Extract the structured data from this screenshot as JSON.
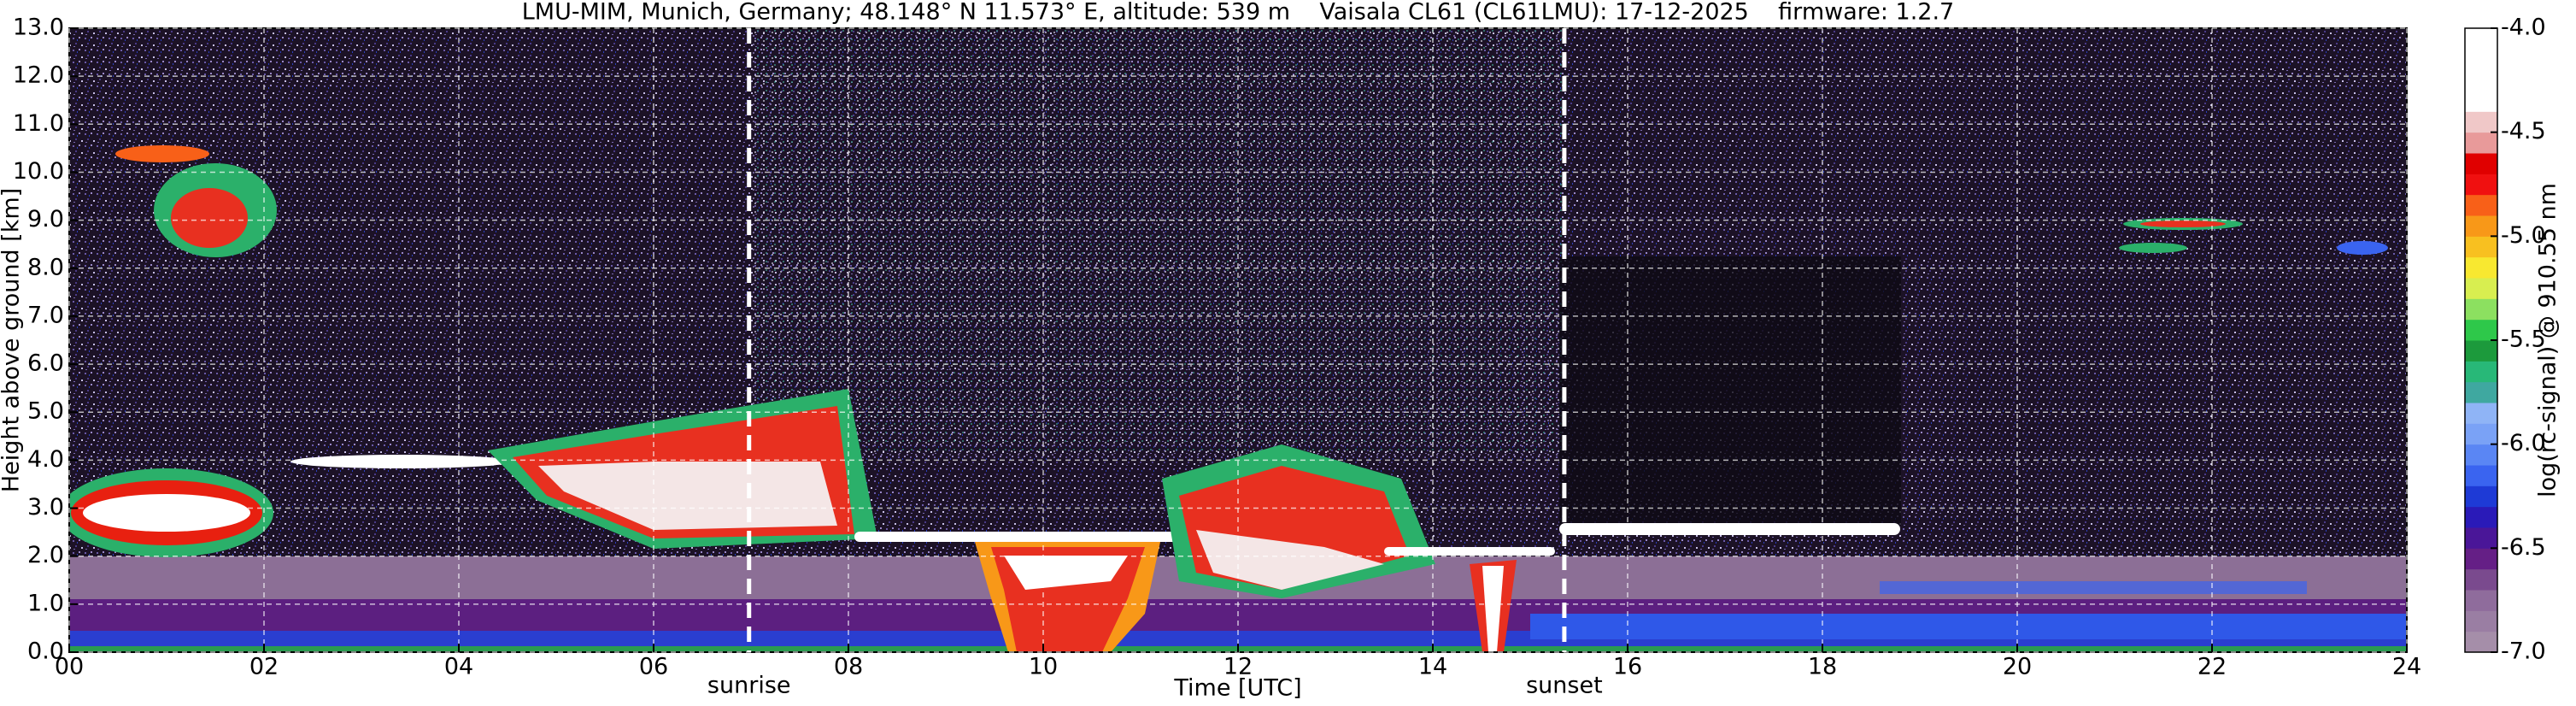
{
  "chart_data": {
    "type": "heatmap",
    "title": "LMU-MIM, Munich, Germany; 48.148° N 11.573° E, altitude: 539 m    Vaisala CL61 (CL61LMU): 17-12-2025    firmware: 1.2.7",
    "xlabel": "Time [UTC]",
    "ylabel": "Height above ground [km]",
    "xlim": [
      0,
      24
    ],
    "xticks": [
      {
        "value": 0,
        "label": "00"
      },
      {
        "value": 2,
        "label": "02"
      },
      {
        "value": 4,
        "label": "04"
      },
      {
        "value": 6,
        "label": "06"
      },
      {
        "value": 8,
        "label": "08"
      },
      {
        "value": 10,
        "label": "10"
      },
      {
        "value": 12,
        "label": "12"
      },
      {
        "value": 14,
        "label": "14"
      },
      {
        "value": 16,
        "label": "16"
      },
      {
        "value": 18,
        "label": "18"
      },
      {
        "value": 20,
        "label": "20"
      },
      {
        "value": 22,
        "label": "22"
      },
      {
        "value": 24,
        "label": "24"
      }
    ],
    "ylim": [
      0,
      13
    ],
    "yticks": [
      {
        "value": 0,
        "label": "0.0"
      },
      {
        "value": 1,
        "label": "1.0"
      },
      {
        "value": 2,
        "label": "2.0"
      },
      {
        "value": 3,
        "label": "3.0"
      },
      {
        "value": 4,
        "label": "4.0"
      },
      {
        "value": 5,
        "label": "5.0"
      },
      {
        "value": 6,
        "label": "6.0"
      },
      {
        "value": 7,
        "label": "7.0"
      },
      {
        "value": 8,
        "label": "8.0"
      },
      {
        "value": 9,
        "label": "9.0"
      },
      {
        "value": 10,
        "label": "10.0"
      },
      {
        "value": 11,
        "label": "11.0"
      },
      {
        "value": 12,
        "label": "12.0"
      },
      {
        "value": 13,
        "label": "13.0"
      }
    ],
    "grid": true,
    "colorbar": {
      "label": "log(rc-signal) @ 910.55 nm",
      "clim": [
        -7,
        -4
      ],
      "ticks": [
        {
          "value": -4,
          "label": "-4.0"
        },
        -4.5,
        {
          "value": -5,
          "label": "-5.0"
        },
        -5.5,
        {
          "value": -6,
          "label": "-6.0"
        },
        -6.5,
        {
          "value": -7,
          "label": "-7.0"
        }
      ],
      "colors": [
        "#a58ea9",
        "#9a7ea3",
        "#8f6c9c",
        "#7a4a8e",
        "#651f86",
        "#4a1698",
        "#2a1ab8",
        "#1e3ad6",
        "#3a64f0",
        "#5a86f4",
        "#7aa2f6",
        "#8fb4f6",
        "#3fa8a0",
        "#28b878",
        "#1c9a3c",
        "#2ec84a",
        "#8ce060",
        "#d8ee50",
        "#f8e830",
        "#f8c020",
        "#f89818",
        "#f86018",
        "#f01010",
        "#e00000",
        "#e89a9a",
        "#f0c8c8",
        "#ffffff",
        "#ffffff",
        "#ffffff",
        "#ffffff"
      ]
    },
    "annotations": [
      {
        "text": "sunrise",
        "x": 6.98
      },
      {
        "text": "sunset",
        "x": 15.35
      }
    ]
  }
}
